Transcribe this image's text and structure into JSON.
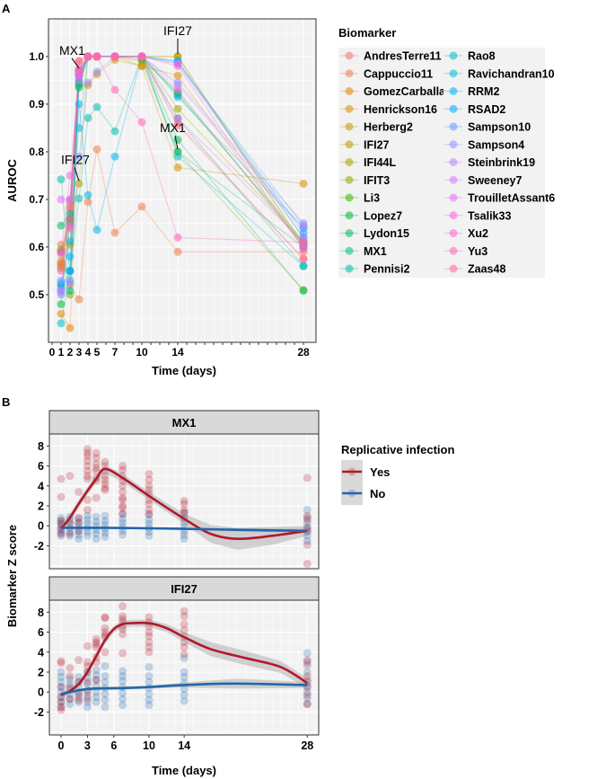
{
  "panel_labels": {
    "a": "A",
    "b": "B"
  },
  "chart_data": [
    {
      "type": "line",
      "panel": "A",
      "xlabel": "Time (days)",
      "ylabel": "AUROC",
      "x_ticks": [
        0,
        1,
        2,
        3,
        4,
        5,
        7,
        10,
        14,
        28
      ],
      "y_ticks": [
        0.5,
        0.6,
        0.7,
        0.8,
        0.9,
        1.0
      ],
      "y_tick_labels": [
        "0.5",
        "0.6",
        "0.7",
        "0.8",
        "0.9",
        "1.0"
      ],
      "xlim": [
        -0.4,
        29.4
      ],
      "ylim": [
        0.4,
        1.079
      ],
      "legend_title": "Biomarker",
      "legend_position": "right",
      "x": [
        1,
        2,
        3,
        4,
        5,
        7,
        10,
        14,
        28
      ],
      "series": [
        {
          "name": "AndresTerre11",
          "color": "#F8766D",
          "values": [
            0.59,
            0.68,
            0.99,
            1,
            1,
            1,
            1,
            0.86,
            0.575
          ]
        },
        {
          "name": "Cappuccio11",
          "color": "#EF7F49",
          "values": [
            0.605,
            0.52,
            0.49,
            0.695,
            0.805,
            0.63,
            0.685,
            0.59,
            0.59
          ]
        },
        {
          "name": "GomezCarballa3",
          "color": "#E58700",
          "values": [
            0.46,
            0.43,
            0.97,
            1,
            1,
            1,
            0.98,
            0.96,
            0.6
          ]
        },
        {
          "name": "Henrickson16",
          "color": "#D89000",
          "values": [
            0.565,
            0.605,
            0.94,
            0.94,
            0.963,
            0.993,
            0.98,
            0.767,
            0.733
          ]
        },
        {
          "name": "Herberg2",
          "color": "#C99800",
          "values": [
            0.57,
            0.66,
            0.96,
            1,
            1,
            1,
            1,
            1,
            0.605
          ]
        },
        {
          "name": "IFI27",
          "color": "#B79F00",
          "values": [
            0.56,
            0.655,
            0.733,
            1,
            1,
            1,
            1,
            1,
            0.6
          ]
        },
        {
          "name": "IFI44L",
          "color": "#A3A500",
          "values": [
            0.555,
            0.695,
            0.97,
            1,
            1,
            1,
            1,
            0.89,
            0.61
          ]
        },
        {
          "name": "IFIT3",
          "color": "#8BAB00",
          "values": [
            0.595,
            0.5,
            0.965,
            1,
            1,
            1,
            0.99,
            0.8,
            0.51
          ]
        },
        {
          "name": "Li3",
          "color": "#39B600",
          "values": [
            0.59,
            0.65,
            0.945,
            1,
            1,
            1,
            0.995,
            0.925,
            0.605
          ]
        },
        {
          "name": "Lopez7",
          "color": "#00BA38",
          "values": [
            0.48,
            0.66,
            0.935,
            1,
            1,
            1,
            1,
            0.92,
            0.612
          ]
        },
        {
          "name": "Lydon15",
          "color": "#00BD5F",
          "values": [
            0.645,
            0.67,
            0.95,
            1,
            1,
            1,
            1,
            0.825,
            0.508
          ]
        },
        {
          "name": "MX1",
          "color": "#00C08B",
          "values": [
            0.52,
            0.508,
            0.97,
            1,
            1,
            1,
            1,
            0.8,
            0.6
          ]
        },
        {
          "name": "Pennisi2",
          "color": "#00BFAA",
          "values": [
            0.742,
            0.55,
            0.702,
            0.871,
            0.894,
            0.843,
            1,
            0.87,
            0.56
          ]
        },
        {
          "name": "Rao8",
          "color": "#00BEC4",
          "values": [
            0.44,
            0.55,
            0.94,
            1,
            1,
            1,
            1,
            0.79,
            0.56
          ]
        },
        {
          "name": "Ravichandran10",
          "color": "#00BBDB",
          "values": [
            0.52,
            0.612,
            0.85,
            1,
            1,
            1,
            1,
            0.99,
            0.63
          ]
        },
        {
          "name": "RRM2",
          "color": "#00B4EF",
          "values": [
            0.525,
            0.58,
            0.9,
            0.709,
            0.636,
            0.79,
            1,
            0.915,
            0.64
          ]
        },
        {
          "name": "RSAD2",
          "color": "#00A9FF",
          "values": [
            0.51,
            0.55,
            0.96,
            1,
            1,
            1,
            1,
            0.99,
            0.62
          ]
        },
        {
          "name": "Sampson10",
          "color": "#619CFF",
          "values": [
            0.5,
            0.53,
            0.96,
            1,
            1,
            1,
            1,
            0.985,
            0.645
          ]
        },
        {
          "name": "Sampson4",
          "color": "#8F91FF",
          "values": [
            0.53,
            0.525,
            0.79,
            0.945,
            0.968,
            1,
            1,
            0.945,
            0.65
          ]
        },
        {
          "name": "Steinbrink19",
          "color": "#B385FF",
          "values": [
            0.505,
            0.7,
            0.965,
            1,
            1,
            1,
            1,
            0.94,
            0.64
          ]
        },
        {
          "name": "Sweeney7",
          "color": "#CF78FF",
          "values": [
            0.51,
            0.645,
            0.95,
            1,
            1,
            1,
            1,
            0.985,
            0.62
          ]
        },
        {
          "name": "TrouilletAssant6",
          "color": "#E76BF3",
          "values": [
            0.7,
            0.7,
            0.975,
            1,
            1,
            1,
            1,
            0.93,
            0.6
          ]
        },
        {
          "name": "Tsalik33",
          "color": "#F564E3",
          "values": [
            0.59,
            0.75,
            0.96,
            1,
            1,
            1,
            1,
            0.87,
            0.61
          ]
        },
        {
          "name": "Xu2",
          "color": "#FD61D1",
          "values": [
            0.585,
            0.66,
            0.965,
            1,
            1,
            1,
            1,
            0.98,
            0.595
          ]
        },
        {
          "name": "Yu3",
          "color": "#FF64B0",
          "values": [
            0.55,
            0.64,
            0.97,
            1,
            1,
            0.93,
            0.862,
            0.62,
            0.61
          ]
        },
        {
          "name": "Zaas48",
          "color": "#FF6C91",
          "values": [
            0.565,
            0.685,
            0.99,
            1,
            1,
            1,
            1,
            0.855,
            0.575
          ]
        }
      ],
      "annotations": [
        {
          "text": "MX1",
          "x": 3,
          "y": 0.97
        },
        {
          "text": "IFI27",
          "x": 3,
          "y": 0.733
        },
        {
          "text": "IFI27",
          "x": 14,
          "y": 1.0
        },
        {
          "text": "MX1",
          "x": 14,
          "y": 0.8
        }
      ]
    },
    {
      "type": "scatter",
      "panel": "B",
      "xlabel": "Time (days)",
      "ylabel": "Biomarker Z score",
      "x_ticks": [
        0,
        3,
        6,
        10,
        14,
        28
      ],
      "y_ticks": [
        -2,
        0,
        2,
        4,
        6,
        8
      ],
      "xlim": [
        -1.33,
        29.3
      ],
      "ylim": [
        -4.3,
        9.2
      ],
      "legend_title": "Replicative infection",
      "legend_position": "right",
      "groups": [
        {
          "name": "Yes",
          "color": "#B2182B"
        },
        {
          "name": "No",
          "color": "#2166AC"
        }
      ],
      "facets": [
        {
          "title": "MX1",
          "points": {
            "Yes": {
              "0": [
                4.7,
                2.9,
                0.5,
                -0.3,
                -0.8,
                0.2
              ],
              "1": [
                5.0,
                -0.8,
                0.3
              ],
              "2": [
                3.4,
                0.8,
                -0.5,
                0.3
              ],
              "3": [
                7.7,
                7.3,
                7.0,
                6.5,
                6.0,
                5.5,
                5.0,
                4.7,
                2.6,
                1.6
              ],
              "4": [
                7.3,
                6.8,
                6.2,
                5.8,
                5.5,
                4.8,
                4.5,
                2.8
              ],
              "5": [
                6.4,
                6.0,
                5.5,
                5.0,
                4.6,
                4.2,
                3.8,
                3.6
              ],
              "7": [
                6.0,
                5.6,
                5.0,
                4.5,
                4.0,
                3.4,
                2.8,
                2.6,
                2.0,
                1.8,
                1.2
              ],
              "10": [
                5.2,
                4.6,
                4.0,
                3.6,
                3.2,
                2.6,
                2.2,
                1.6,
                1.2
              ],
              "14": [
                2.5,
                2.2,
                1.6,
                1.3,
                0.8
              ],
              "28": [
                4.8,
                1.0,
                0.6,
                -0.2,
                -0.5,
                -1.9,
                -3.8
              ]
            },
            "No": {
              "0": [
                -1.0,
                -0.7,
                -0.4,
                -0.1,
                0.2,
                0.5,
                0.8
              ],
              "1": [
                -1.0,
                -0.6,
                -0.2,
                0.2,
                0.6,
                0.9
              ],
              "2": [
                -1.3,
                -0.9,
                -0.5,
                -0.1,
                0.3,
                0.7
              ],
              "3": [
                -1.0,
                -0.6,
                -0.2,
                0.2,
                0.6,
                1.0
              ],
              "4": [
                -1.3,
                -0.8,
                -0.4,
                0.0,
                0.4,
                0.9
              ],
              "5": [
                -1.1,
                -0.7,
                -0.3,
                0.1,
                0.5,
                1.0
              ],
              "7": [
                -0.9,
                -0.5,
                -0.1,
                0.3,
                0.7,
                1.2
              ],
              "10": [
                -1.0,
                -0.6,
                -0.2,
                0.2,
                0.6,
                1.1
              ],
              "14": [
                -1.3,
                -0.9,
                -0.5,
                -0.1,
                0.3,
                0.8,
                1.3
              ],
              "28": [
                -1.5,
                -1.0,
                -0.6,
                -0.2,
                0.3,
                0.8,
                1.6
              ]
            }
          },
          "smooth": {
            "Yes": {
              "x": [
                0,
                1,
                2,
                3,
                4,
                5,
                7,
                10,
                14,
                17,
                20,
                24,
                28
              ],
              "y": [
                -0.3,
                0.8,
                2.2,
                3.5,
                4.7,
                5.7,
                4.8,
                3.0,
                0.7,
                -0.8,
                -1.3,
                -1.0,
                -0.5
              ],
              "se": [
                0.4,
                0.4,
                0.4,
                0.4,
                0.4,
                0.4,
                0.4,
                0.4,
                0.5,
                0.9,
                1.1,
                0.9,
                0.5
              ]
            },
            "No": {
              "x": [
                0,
                5,
                10,
                14,
                20,
                28
              ],
              "y": [
                -0.2,
                -0.2,
                -0.25,
                -0.3,
                -0.4,
                -0.5
              ],
              "se": [
                0.1,
                0.1,
                0.1,
                0.1,
                0.15,
                0.2
              ]
            }
          }
        },
        {
          "title": "IFI27",
          "points": {
            "Yes": {
              "0": [
                3.1,
                2.9,
                0.5,
                -0.5,
                -1.0,
                -1.5,
                -1.8
              ],
              "1": [
                2.4,
                1.6,
                0.5,
                -0.7
              ],
              "2": [
                3.2,
                1.0,
                -0.2,
                -0.8
              ],
              "3": [
                4.6,
                3.0,
                2.6,
                2.0,
                1.0,
                0.0,
                -0.7
              ],
              "4": [
                5.3,
                5.0,
                4.8,
                4.5,
                3.5,
                3.0,
                1.2
              ],
              "5": [
                7.5,
                7.4,
                6.4,
                6.0,
                5.7,
                5.5,
                4.0
              ],
              "7": [
                8.6,
                7.6,
                7.3,
                7.0,
                6.6,
                6.3,
                5.8,
                3.9
              ],
              "10": [
                7.5,
                7.0,
                6.6,
                6.0,
                5.6,
                5.0,
                4.5,
                4.0
              ],
              "14": [
                8.1,
                7.6,
                6.8,
                6.2,
                5.6,
                5.0,
                4.5,
                3.8
              ],
              "28": [
                3.2,
                2.7,
                1.6,
                1.0,
                0.5,
                -0.3,
                -1.2
              ]
            },
            "No": {
              "0": [
                -1.5,
                -1.0,
                -0.5,
                0.0,
                0.5,
                1.0,
                1.5,
                2.0
              ],
              "1": [
                -1.2,
                -0.7,
                -0.2,
                0.3,
                0.8,
                1.3
              ],
              "2": [
                -1.0,
                -0.5,
                0.0,
                0.5,
                1.0,
                1.5
              ],
              "3": [
                -1.5,
                -1.0,
                -0.4,
                0.2,
                0.8,
                1.4,
                2.0
              ],
              "4": [
                -1.0,
                -0.5,
                0.0,
                0.6,
                1.2,
                1.7,
                2.2
              ],
              "5": [
                -1.5,
                -0.8,
                -0.2,
                0.4,
                1.0,
                1.6,
                2.6
              ],
              "7": [
                -1.3,
                -0.7,
                -0.1,
                0.5,
                1.1,
                1.6,
                2.1
              ],
              "10": [
                -1.3,
                -0.8,
                -0.2,
                0.4,
                1.0,
                1.6,
                2.5
              ],
              "14": [
                -0.9,
                -0.3,
                0.3,
                0.9,
                1.5,
                2.0,
                3.4
              ],
              "28": [
                -1.2,
                -0.6,
                0.0,
                0.6,
                1.2,
                2.0,
                3.0,
                3.9
              ]
            }
          },
          "smooth": {
            "Yes": {
              "x": [
                0,
                1,
                2,
                3,
                4,
                5,
                6,
                7,
                8,
                10,
                12,
                14,
                17,
                21,
                25,
                28
              ],
              "y": [
                -0.3,
                0.1,
                0.8,
                2.0,
                3.6,
                5.2,
                6.3,
                6.8,
                6.9,
                6.9,
                6.4,
                5.5,
                4.3,
                3.4,
                2.5,
                0.9
              ],
              "se": [
                0.3,
                0.3,
                0.3,
                0.3,
                0.35,
                0.35,
                0.35,
                0.35,
                0.35,
                0.35,
                0.4,
                0.5,
                0.7,
                0.7,
                0.6,
                0.5
              ]
            },
            "No": {
              "x": [
                0,
                3,
                7,
                10,
                14,
                20,
                28
              ],
              "y": [
                -0.2,
                0.3,
                0.4,
                0.5,
                0.7,
                0.85,
                0.7
              ],
              "se": [
                0.2,
                0.15,
                0.15,
                0.15,
                0.25,
                0.5,
                0.3
              ]
            }
          }
        }
      ]
    }
  ]
}
